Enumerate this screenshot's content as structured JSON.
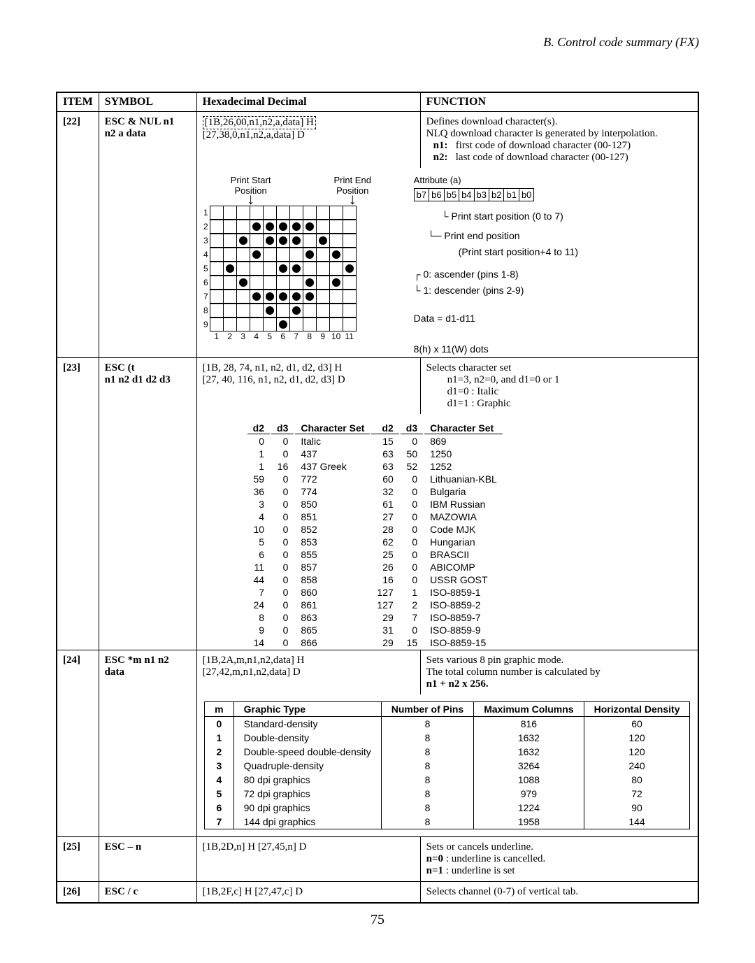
{
  "header": "B.   Control code summary (FX)",
  "cols": {
    "item": "ITEM",
    "symbol": "SYMBOL",
    "hex": "Hexadecimal Decimal",
    "func": "FUNCTION"
  },
  "r22": {
    "item": "[22]",
    "sym1": "ESC & NUL n1",
    "sym2": "n2 a data",
    "hex1": "[1B,26,00,n1,n2,a,data] H",
    "hex2": "[27,38,0,n1,n2,a,data] D",
    "func1": "Defines download character(s).",
    "func2": "NLQ download character is generated by interpolation.",
    "n1_label": "n1:",
    "n1_text": "first code of download character (00-127)",
    "n2_label": "n2:",
    "n2_text": "last code of download character (00-127)",
    "print_start": "Print Start",
    "position": "Position",
    "print_end": "Print End",
    "attr_a": "Attribute (a)",
    "bits": [
      "b7",
      "b6",
      "b5",
      "b4",
      "b3",
      "b2",
      "b1",
      "b0"
    ],
    "pstart": "Print start position (0 to 7)",
    "pend1": "Print end position",
    "pend2": "(Print start position+4 to 11)",
    "asc": "0: ascender (pins 1-8)",
    "desc": "1: descender (pins 2-9)",
    "data_eq": "Data = d1-d11",
    "dots_spec": "8(h) x 11(W) dots",
    "grid_dots": [
      [
        0,
        0,
        0,
        0,
        0,
        0,
        0,
        0,
        0,
        0,
        0
      ],
      [
        0,
        0,
        0,
        1,
        1,
        1,
        1,
        1,
        0,
        0,
        0
      ],
      [
        0,
        0,
        1,
        0,
        1,
        1,
        1,
        0,
        1,
        0,
        0
      ],
      [
        0,
        0,
        0,
        1,
        0,
        0,
        0,
        1,
        0,
        1,
        0
      ],
      [
        0,
        1,
        0,
        0,
        0,
        1,
        1,
        0,
        0,
        0,
        1
      ],
      [
        0,
        0,
        1,
        0,
        0,
        0,
        0,
        1,
        0,
        1,
        0
      ],
      [
        0,
        0,
        0,
        1,
        1,
        1,
        1,
        1,
        0,
        0,
        0
      ],
      [
        0,
        0,
        0,
        0,
        1,
        0,
        1,
        0,
        0,
        0,
        0
      ],
      [
        0,
        0,
        0,
        0,
        0,
        1,
        0,
        0,
        0,
        0,
        0
      ]
    ]
  },
  "r23": {
    "item": "[23]",
    "sym1": "ESC (t",
    "sym2": "n1 n2 d1 d2 d3",
    "hex1": "[1B, 28, 74, n1, n2, d1, d2, d3] H",
    "hex2": "[27, 40, 116, n1, n2, d1, d2, d3] D",
    "func1": "Selects character set",
    "f2": "n1=3, n2=0, and d1=0 or 1",
    "f3": "d1=0 : Italic",
    "f4": "d1=1 : Graphic",
    "cs_head": [
      "d2",
      "d3",
      "Character Set",
      "d2",
      "d3",
      "Character Set"
    ],
    "cs_rows": [
      [
        "0",
        "0",
        "Italic",
        "15",
        "0",
        "869"
      ],
      [
        "1",
        "0",
        "437",
        "63",
        "50",
        "1250"
      ],
      [
        "1",
        "16",
        "437 Greek",
        "63",
        "52",
        "1252"
      ],
      [
        "59",
        "0",
        "772",
        "60",
        "0",
        "Lithuanian-KBL"
      ],
      [
        "36",
        "0",
        "774",
        "32",
        "0",
        "Bulgaria"
      ],
      [
        "3",
        "0",
        "850",
        "61",
        "0",
        "IBM Russian"
      ],
      [
        "4",
        "0",
        "851",
        "27",
        "0",
        "MAZOWIA"
      ],
      [
        "10",
        "0",
        "852",
        "28",
        "0",
        "Code MJK"
      ],
      [
        "5",
        "0",
        "853",
        "62",
        "0",
        "Hungarian"
      ],
      [
        "6",
        "0",
        "855",
        "25",
        "0",
        "BRASCII"
      ],
      [
        "11",
        "0",
        "857",
        "26",
        "0",
        "ABICOMP"
      ],
      [
        "44",
        "0",
        "858",
        "16",
        "0",
        "USSR GOST"
      ],
      [
        "7",
        "0",
        "860",
        "127",
        "1",
        "ISO-8859-1"
      ],
      [
        "24",
        "0",
        "861",
        "127",
        "2",
        "ISO-8859-2"
      ],
      [
        "8",
        "0",
        "863",
        "29",
        "7",
        "ISO-8859-7"
      ],
      [
        "9",
        "0",
        "865",
        "31",
        "0",
        "ISO-8859-9"
      ],
      [
        "14",
        "0",
        "866",
        "29",
        "15",
        "ISO-8859-15"
      ]
    ]
  },
  "r24": {
    "item": "[24]",
    "sym1": "ESC *m n1 n2",
    "sym2": "data",
    "hex1": "[1B,2A,m,n1,n2,data] H",
    "hex2": "[27,42,m,n1,n2,data] D",
    "func1": "Sets various 8 pin graphic mode.",
    "func2": "The total column number is calculated by",
    "func3": "n1 + n2 x 256.",
    "g_head": [
      "m",
      "Graphic Type",
      "Number of Pins",
      "Maximum Columns",
      "Horizontal Density"
    ],
    "g_rows": [
      [
        "0",
        "Standard-density",
        "8",
        "816",
        "60"
      ],
      [
        "1",
        "Double-density",
        "8",
        "1632",
        "120"
      ],
      [
        "2",
        "Double-speed double-density",
        "8",
        "1632",
        "120"
      ],
      [
        "3",
        "Quadruple-density",
        "8",
        "3264",
        "240"
      ],
      [
        "4",
        "80 dpi graphics",
        "8",
        "1088",
        "80"
      ],
      [
        "5",
        "72 dpi graphics",
        "8",
        "979",
        "72"
      ],
      [
        "6",
        "90 dpi graphics",
        "8",
        "1224",
        "90"
      ],
      [
        "7",
        "144 dpi graphics",
        "8",
        "1958",
        "144"
      ]
    ]
  },
  "r25": {
    "item": "[25]",
    "sym": "ESC – n",
    "hex": "[1B,2D,n] H   [27,45,n] D",
    "f1": "Sets or cancels underline.",
    "f2_b": "n=0",
    "f2": " : underline is cancelled.",
    "f3_b": "n=1",
    "f3": " : underline is set"
  },
  "r26": {
    "item": "[26]",
    "sym": "ESC / c",
    "hex": "[1B,2F,c] H   [27,47,c] D",
    "f1": "Selects channel (0-7) of vertical tab."
  },
  "page_num": "75"
}
